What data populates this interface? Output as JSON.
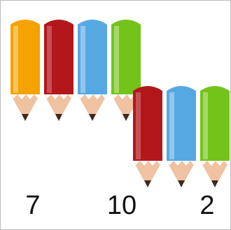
{
  "pencils": {
    "top_row": [
      "orange",
      "red",
      "blue",
      "green"
    ],
    "bottom_row": [
      "red",
      "blue",
      "green"
    ]
  },
  "colors": {
    "orange": "#f4a300",
    "red": "#b3171b",
    "blue": "#56a8e3",
    "green": "#74c31b",
    "wood": "#efc2a2",
    "lead": "#3a2a22"
  },
  "numbers": {
    "left": "7",
    "middle": "10",
    "right": "2"
  }
}
